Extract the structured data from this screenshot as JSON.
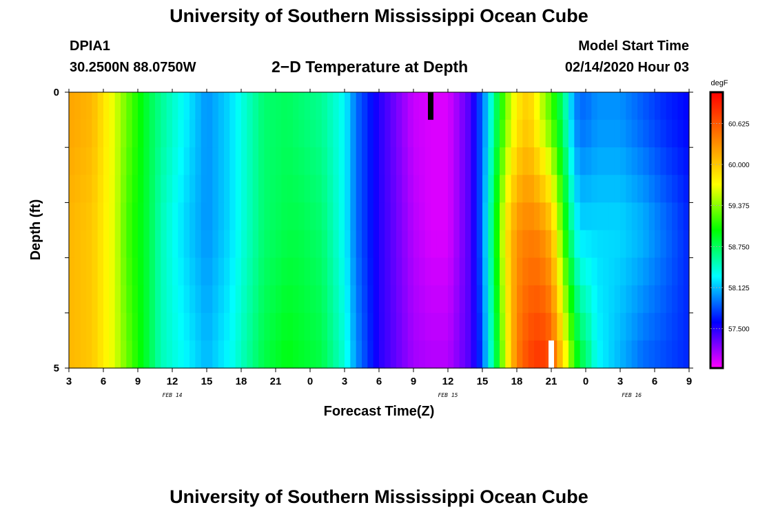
{
  "page": {
    "title_top": "University of Southern Mississippi Ocean Cube",
    "title_bottom": "University of Southern Mississippi Ocean Cube",
    "station_id": "DPIA1",
    "station_coords": "30.2500N 88.0750W",
    "plot_heading": "2−D Temperature at Depth",
    "model_start_label": "Model Start Time",
    "model_start_time": "02/14/2020 Hour 03"
  },
  "chart_data": {
    "type": "heatmap",
    "title": "2−D Temperature at Depth",
    "xlabel": "Forecast Time(Z)",
    "ylabel": "Depth (ft)",
    "x_ticks": [
      "3",
      "6",
      "9",
      "12",
      "15",
      "18",
      "21",
      "0",
      "3",
      "6",
      "9",
      "12",
      "15",
      "18",
      "21",
      "0",
      "3",
      "6",
      "9"
    ],
    "x_range_hours_from_start": [
      0,
      54
    ],
    "date_labels": [
      {
        "text": "FEB 14",
        "at_hour": 9
      },
      {
        "text": "FEB 15",
        "at_hour": 33
      },
      {
        "text": "FEB 16",
        "at_hour": 49
      }
    ],
    "y_ticks": [
      "0",
      "5"
    ],
    "ylim": [
      0,
      5
    ],
    "y_inverted": true,
    "colorbar": {
      "unit": "degF",
      "min": 56.9,
      "max": 61.1,
      "ticks": [
        60.625,
        60.0,
        59.375,
        58.75,
        58.125,
        57.5
      ],
      "tick_labels": [
        "60.625",
        "60.000",
        "59.375",
        "58.750",
        "58.125",
        "57.500"
      ],
      "colormap": "rainbow (magenta-blue-cyan-green-yellow-orange-red)"
    },
    "depth_layers_ft": [
      0.25,
      0.75,
      1.25,
      1.75,
      2.25,
      2.75,
      3.25,
      3.75,
      4.25,
      4.75
    ],
    "time_knots_hours": [
      0,
      2,
      4,
      5,
      7,
      8,
      10,
      12,
      14,
      17,
      19,
      20,
      22,
      24,
      25,
      27,
      30,
      31.5,
      33,
      35,
      36,
      36.5,
      37,
      38,
      39,
      40,
      41,
      42,
      43,
      44,
      44.5,
      45,
      46,
      48,
      50,
      52,
      54
    ],
    "temperature_profiles_degF": [
      {
        "depth_ft": 0.5,
        "values": [
          60.2,
          60.1,
          59.6,
          59.3,
          58.8,
          58.6,
          58.3,
          58.0,
          58.2,
          58.7,
          58.75,
          58.7,
          58.6,
          58.3,
          57.9,
          57.5,
          57.05,
          57.0,
          57.0,
          57.4,
          57.9,
          58.2,
          58.6,
          59.3,
          59.8,
          60.0,
          59.6,
          59.2,
          58.7,
          58.0,
          57.9,
          57.9,
          58.0,
          58.0,
          57.85,
          57.7,
          57.6
        ]
      },
      {
        "depth_ft": 2.5,
        "values": [
          60.1,
          60.0,
          59.6,
          59.2,
          58.8,
          58.5,
          58.2,
          58.0,
          58.2,
          58.7,
          58.8,
          58.8,
          58.7,
          58.3,
          57.9,
          57.5,
          57.1,
          57.0,
          57.0,
          57.4,
          57.9,
          58.4,
          58.8,
          59.8,
          60.3,
          60.4,
          60.35,
          60.1,
          59.2,
          58.4,
          58.2,
          58.2,
          58.2,
          58.2,
          58.1,
          57.9,
          57.7
        ]
      },
      {
        "depth_ft": 4.75,
        "values": [
          60.1,
          60.0,
          59.6,
          59.3,
          58.8,
          58.5,
          58.3,
          58.1,
          58.3,
          58.8,
          58.95,
          58.9,
          58.8,
          58.4,
          58.0,
          57.5,
          57.15,
          57.1,
          57.1,
          57.4,
          57.8,
          58.3,
          58.6,
          59.6,
          60.4,
          60.7,
          60.8,
          60.65,
          59.9,
          59.1,
          58.8,
          58.7,
          58.3,
          58.1,
          57.9,
          57.8,
          57.7
        ]
      }
    ],
    "missing_data_marks": [
      {
        "color": "#000000",
        "at_hour": 31.5,
        "depth_range_ft": [
          0,
          0.5
        ]
      },
      {
        "color": "#ffffff",
        "at_hour": 42,
        "depth_range_ft": [
          4.5,
          5
        ]
      }
    ]
  }
}
